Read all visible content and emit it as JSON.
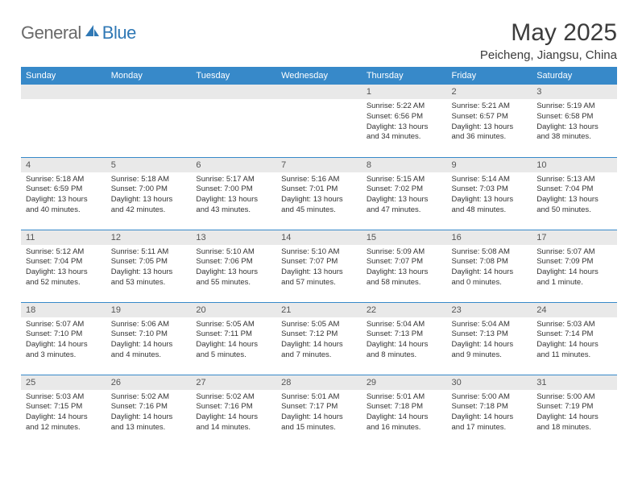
{
  "brand": {
    "word1": "General",
    "word2": "Blue"
  },
  "title": "May 2025",
  "location": "Peicheng, Jiangsu, China",
  "colors": {
    "header_bg": "#3789c9",
    "header_fg": "#ffffff",
    "daynum_bg": "#e9e9e9",
    "rule": "#3789c9",
    "logo_gray": "#6a6a6a",
    "logo_blue": "#2f78b5"
  },
  "weekdays": [
    "Sunday",
    "Monday",
    "Tuesday",
    "Wednesday",
    "Thursday",
    "Friday",
    "Saturday"
  ],
  "weeks": [
    [
      {
        "n": "",
        "lines": [
          "",
          "",
          "",
          ""
        ]
      },
      {
        "n": "",
        "lines": [
          "",
          "",
          "",
          ""
        ]
      },
      {
        "n": "",
        "lines": [
          "",
          "",
          "",
          ""
        ]
      },
      {
        "n": "",
        "lines": [
          "",
          "",
          "",
          ""
        ]
      },
      {
        "n": "1",
        "lines": [
          "Sunrise: 5:22 AM",
          "Sunset: 6:56 PM",
          "Daylight: 13 hours",
          "and 34 minutes."
        ]
      },
      {
        "n": "2",
        "lines": [
          "Sunrise: 5:21 AM",
          "Sunset: 6:57 PM",
          "Daylight: 13 hours",
          "and 36 minutes."
        ]
      },
      {
        "n": "3",
        "lines": [
          "Sunrise: 5:19 AM",
          "Sunset: 6:58 PM",
          "Daylight: 13 hours",
          "and 38 minutes."
        ]
      }
    ],
    [
      {
        "n": "4",
        "lines": [
          "Sunrise: 5:18 AM",
          "Sunset: 6:59 PM",
          "Daylight: 13 hours",
          "and 40 minutes."
        ]
      },
      {
        "n": "5",
        "lines": [
          "Sunrise: 5:18 AM",
          "Sunset: 7:00 PM",
          "Daylight: 13 hours",
          "and 42 minutes."
        ]
      },
      {
        "n": "6",
        "lines": [
          "Sunrise: 5:17 AM",
          "Sunset: 7:00 PM",
          "Daylight: 13 hours",
          "and 43 minutes."
        ]
      },
      {
        "n": "7",
        "lines": [
          "Sunrise: 5:16 AM",
          "Sunset: 7:01 PM",
          "Daylight: 13 hours",
          "and 45 minutes."
        ]
      },
      {
        "n": "8",
        "lines": [
          "Sunrise: 5:15 AM",
          "Sunset: 7:02 PM",
          "Daylight: 13 hours",
          "and 47 minutes."
        ]
      },
      {
        "n": "9",
        "lines": [
          "Sunrise: 5:14 AM",
          "Sunset: 7:03 PM",
          "Daylight: 13 hours",
          "and 48 minutes."
        ]
      },
      {
        "n": "10",
        "lines": [
          "Sunrise: 5:13 AM",
          "Sunset: 7:04 PM",
          "Daylight: 13 hours",
          "and 50 minutes."
        ]
      }
    ],
    [
      {
        "n": "11",
        "lines": [
          "Sunrise: 5:12 AM",
          "Sunset: 7:04 PM",
          "Daylight: 13 hours",
          "and 52 minutes."
        ]
      },
      {
        "n": "12",
        "lines": [
          "Sunrise: 5:11 AM",
          "Sunset: 7:05 PM",
          "Daylight: 13 hours",
          "and 53 minutes."
        ]
      },
      {
        "n": "13",
        "lines": [
          "Sunrise: 5:10 AM",
          "Sunset: 7:06 PM",
          "Daylight: 13 hours",
          "and 55 minutes."
        ]
      },
      {
        "n": "14",
        "lines": [
          "Sunrise: 5:10 AM",
          "Sunset: 7:07 PM",
          "Daylight: 13 hours",
          "and 57 minutes."
        ]
      },
      {
        "n": "15",
        "lines": [
          "Sunrise: 5:09 AM",
          "Sunset: 7:07 PM",
          "Daylight: 13 hours",
          "and 58 minutes."
        ]
      },
      {
        "n": "16",
        "lines": [
          "Sunrise: 5:08 AM",
          "Sunset: 7:08 PM",
          "Daylight: 14 hours",
          "and 0 minutes."
        ]
      },
      {
        "n": "17",
        "lines": [
          "Sunrise: 5:07 AM",
          "Sunset: 7:09 PM",
          "Daylight: 14 hours",
          "and 1 minute."
        ]
      }
    ],
    [
      {
        "n": "18",
        "lines": [
          "Sunrise: 5:07 AM",
          "Sunset: 7:10 PM",
          "Daylight: 14 hours",
          "and 3 minutes."
        ]
      },
      {
        "n": "19",
        "lines": [
          "Sunrise: 5:06 AM",
          "Sunset: 7:10 PM",
          "Daylight: 14 hours",
          "and 4 minutes."
        ]
      },
      {
        "n": "20",
        "lines": [
          "Sunrise: 5:05 AM",
          "Sunset: 7:11 PM",
          "Daylight: 14 hours",
          "and 5 minutes."
        ]
      },
      {
        "n": "21",
        "lines": [
          "Sunrise: 5:05 AM",
          "Sunset: 7:12 PM",
          "Daylight: 14 hours",
          "and 7 minutes."
        ]
      },
      {
        "n": "22",
        "lines": [
          "Sunrise: 5:04 AM",
          "Sunset: 7:13 PM",
          "Daylight: 14 hours",
          "and 8 minutes."
        ]
      },
      {
        "n": "23",
        "lines": [
          "Sunrise: 5:04 AM",
          "Sunset: 7:13 PM",
          "Daylight: 14 hours",
          "and 9 minutes."
        ]
      },
      {
        "n": "24",
        "lines": [
          "Sunrise: 5:03 AM",
          "Sunset: 7:14 PM",
          "Daylight: 14 hours",
          "and 11 minutes."
        ]
      }
    ],
    [
      {
        "n": "25",
        "lines": [
          "Sunrise: 5:03 AM",
          "Sunset: 7:15 PM",
          "Daylight: 14 hours",
          "and 12 minutes."
        ]
      },
      {
        "n": "26",
        "lines": [
          "Sunrise: 5:02 AM",
          "Sunset: 7:16 PM",
          "Daylight: 14 hours",
          "and 13 minutes."
        ]
      },
      {
        "n": "27",
        "lines": [
          "Sunrise: 5:02 AM",
          "Sunset: 7:16 PM",
          "Daylight: 14 hours",
          "and 14 minutes."
        ]
      },
      {
        "n": "28",
        "lines": [
          "Sunrise: 5:01 AM",
          "Sunset: 7:17 PM",
          "Daylight: 14 hours",
          "and 15 minutes."
        ]
      },
      {
        "n": "29",
        "lines": [
          "Sunrise: 5:01 AM",
          "Sunset: 7:18 PM",
          "Daylight: 14 hours",
          "and 16 minutes."
        ]
      },
      {
        "n": "30",
        "lines": [
          "Sunrise: 5:00 AM",
          "Sunset: 7:18 PM",
          "Daylight: 14 hours",
          "and 17 minutes."
        ]
      },
      {
        "n": "31",
        "lines": [
          "Sunrise: 5:00 AM",
          "Sunset: 7:19 PM",
          "Daylight: 14 hours",
          "and 18 minutes."
        ]
      }
    ]
  ]
}
